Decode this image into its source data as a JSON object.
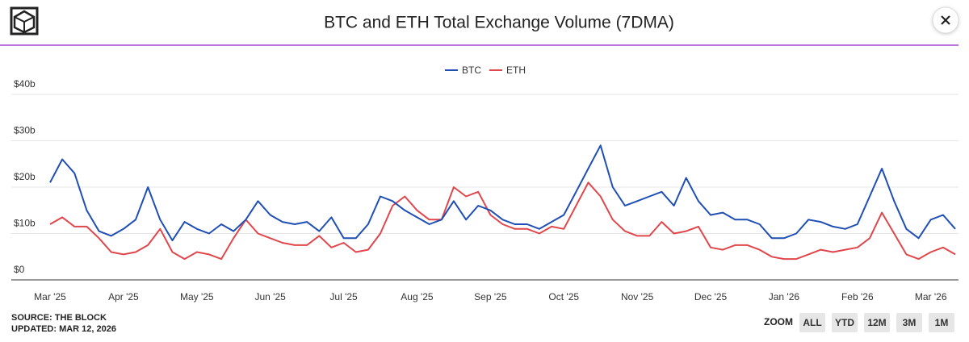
{
  "chart_data": {
    "type": "line",
    "title": "BTC and ETH Total Exchange Volume (7DMA)",
    "categories": [
      "Mar '25",
      null,
      null,
      null,
      null,
      null,
      "Apr '25",
      null,
      null,
      null,
      null,
      null,
      "May '25",
      null,
      null,
      null,
      null,
      null,
      "Jun '25",
      null,
      null,
      null,
      null,
      null,
      "Jul '25",
      null,
      null,
      null,
      null,
      null,
      "Aug '25",
      null,
      null,
      null,
      null,
      null,
      "Sep '25",
      null,
      null,
      null,
      null,
      null,
      "Oct '25",
      null,
      null,
      null,
      null,
      null,
      "Nov '25",
      null,
      null,
      null,
      null,
      null,
      "Dec '25",
      null,
      null,
      null,
      null,
      null,
      "Jan '26",
      null,
      null,
      null,
      null,
      null,
      "Feb '26",
      null,
      null,
      null,
      null,
      null,
      "Mar '26",
      null,
      null
    ],
    "series": [
      {
        "name": "BTC",
        "color": "#1f4eb4",
        "values": [
          21,
          26,
          23,
          15,
          10.5,
          9.5,
          11,
          13,
          20,
          13,
          8.5,
          12.5,
          11,
          10,
          12,
          10.5,
          13,
          17,
          14,
          12.5,
          12,
          12.5,
          10.5,
          13.5,
          9,
          9,
          12,
          18,
          17,
          15,
          13.5,
          12,
          13,
          17,
          13,
          16,
          15,
          13,
          12,
          12,
          11,
          12.5,
          14,
          19,
          24,
          29,
          20,
          16,
          17,
          18,
          19,
          16,
          22,
          17,
          14,
          14.5,
          13,
          13,
          12,
          9,
          9,
          10,
          13,
          12.5,
          11.5,
          11,
          12,
          18,
          24,
          17,
          11,
          9,
          13,
          14,
          11
        ]
      },
      {
        "name": "ETH",
        "color": "#e0474c",
        "values": [
          12,
          13.5,
          11.5,
          11.5,
          9,
          6,
          5.5,
          6,
          7.5,
          11,
          6,
          4.5,
          6,
          5.5,
          4.5,
          9,
          13,
          10,
          9,
          8,
          7.5,
          7.5,
          9.5,
          7,
          8,
          6,
          6.5,
          10,
          16,
          18,
          15,
          13,
          13,
          20,
          18,
          19,
          14,
          12,
          11,
          11,
          10,
          11.5,
          11,
          16,
          21,
          18,
          13,
          10.5,
          9.5,
          9.5,
          12.5,
          10,
          10.5,
          11.5,
          7,
          6.5,
          7.5,
          7.5,
          6.5,
          5,
          4.5,
          4.5,
          5.5,
          6.5,
          6,
          6.5,
          7,
          9,
          14.5,
          10,
          5.5,
          4.5,
          6,
          7,
          5.5
        ]
      }
    ],
    "ylim": [
      0,
      40
    ],
    "yticks": [
      {
        "value": 0,
        "label": "$0"
      },
      {
        "value": 10,
        "label": "$10b"
      },
      {
        "value": 20,
        "label": "$20b"
      },
      {
        "value": 30,
        "label": "$30b"
      },
      {
        "value": 40,
        "label": "$40b"
      }
    ],
    "grid": true,
    "legend": "top",
    "source": "SOURCE: THE BLOCK",
    "updated": "UPDATED: MAR 12, 2026"
  },
  "controls": {
    "zoom_label": "ZOOM",
    "zoom_buttons": [
      "ALL",
      "YTD",
      "12M",
      "3M",
      "1M"
    ]
  }
}
